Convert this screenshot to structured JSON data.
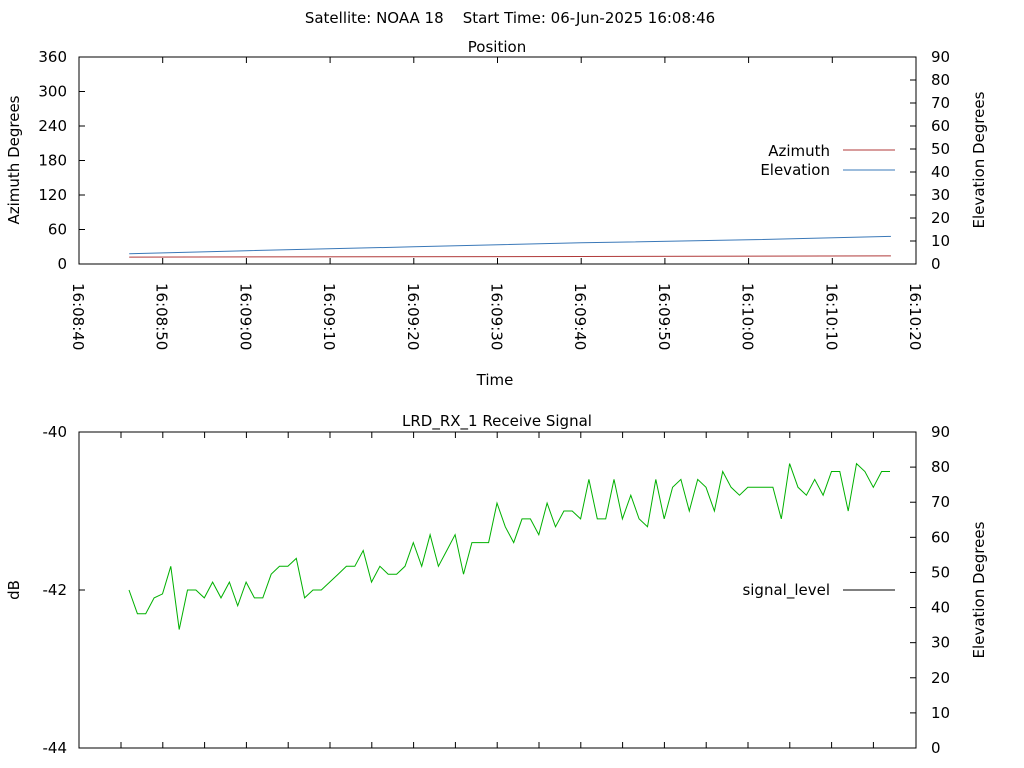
{
  "header": {
    "text": "Satellite: NOAA 18    Start Time: 06-Jun-2025 16:08:46"
  },
  "colors": {
    "azimuth": "#b03a3a",
    "elevation": "#3a78b8",
    "signal": "#00b000",
    "axis": "#000000"
  },
  "chart_data": [
    {
      "type": "line",
      "title": "Position",
      "xlabel": "Time",
      "ylabel": "Azimuth Degrees",
      "y2label": "Elevation Degrees",
      "xlim": [
        "16:08:40",
        "16:10:20"
      ],
      "x_ticks": [
        "16:08:40",
        "16:08:50",
        "16:09:00",
        "16:09:10",
        "16:09:20",
        "16:09:30",
        "16:09:40",
        "16:09:50",
        "16:10:00",
        "16:10:10",
        "16:10:20"
      ],
      "ylim": [
        0,
        360
      ],
      "y_ticks": [
        "0",
        "60",
        "120",
        "180",
        "240",
        "300",
        "360"
      ],
      "y2lim": [
        0,
        90
      ],
      "y2_ticks": [
        "0",
        "10",
        "20",
        "30",
        "40",
        "50",
        "60",
        "70",
        "80",
        "90"
      ],
      "legend_position": "right",
      "grid": false,
      "series": [
        {
          "name": "Azimuth",
          "axis": "left",
          "x": [
            "16:08:46",
            "16:09:40",
            "16:10:17"
          ],
          "values": [
            12,
            13,
            14
          ]
        },
        {
          "name": "Elevation",
          "axis": "right",
          "x": [
            "16:08:46",
            "16:09:00",
            "16:09:20",
            "16:09:40",
            "16:10:00",
            "16:10:17"
          ],
          "values": [
            4.5,
            5.8,
            7.5,
            9.2,
            10.5,
            12
          ]
        }
      ]
    },
    {
      "type": "line",
      "title": "LRD_RX_1 Receive Signal",
      "ylabel": "dB",
      "y2label": "Elevation Degrees",
      "ylim": [
        -44,
        -40
      ],
      "y_ticks": [
        "-40",
        "-42",
        "-44"
      ],
      "y2lim": [
        0,
        90
      ],
      "y2_ticks": [
        "0",
        "10",
        "20",
        "30",
        "40",
        "50",
        "60",
        "70",
        "80",
        "90"
      ],
      "legend_position": "right",
      "grid": false,
      "series": [
        {
          "name": "signal_level",
          "axis": "left",
          "values": [
            -42.0,
            -42.3,
            -42.3,
            -42.1,
            -42.05,
            -41.7,
            -42.5,
            -42.0,
            -42.0,
            -42.1,
            -41.9,
            -42.1,
            -41.9,
            -42.2,
            -41.9,
            -42.1,
            -42.1,
            -41.8,
            -41.7,
            -41.7,
            -41.6,
            -42.1,
            -42.0,
            -42.0,
            -41.9,
            -41.8,
            -41.7,
            -41.7,
            -41.5,
            -41.9,
            -41.7,
            -41.8,
            -41.8,
            -41.7,
            -41.4,
            -41.7,
            -41.3,
            -41.7,
            -41.5,
            -41.3,
            -41.8,
            -41.4,
            -41.4,
            -41.4,
            -40.9,
            -41.2,
            -41.4,
            -41.1,
            -41.1,
            -41.3,
            -40.9,
            -41.2,
            -41.0,
            -41.0,
            -41.1,
            -40.6,
            -41.1,
            -41.1,
            -40.6,
            -41.1,
            -40.8,
            -41.1,
            -41.2,
            -40.6,
            -41.1,
            -40.7,
            -40.6,
            -41.0,
            -40.6,
            -40.7,
            -41.0,
            -40.5,
            -40.7,
            -40.8,
            -40.7,
            -40.7,
            -40.7,
            -40.7,
            -41.1,
            -40.4,
            -40.7,
            -40.8,
            -40.6,
            -40.8,
            -40.5,
            -40.5,
            -41.0,
            -40.4,
            -40.5,
            -40.7,
            -40.5,
            -40.5
          ]
        }
      ]
    }
  ]
}
